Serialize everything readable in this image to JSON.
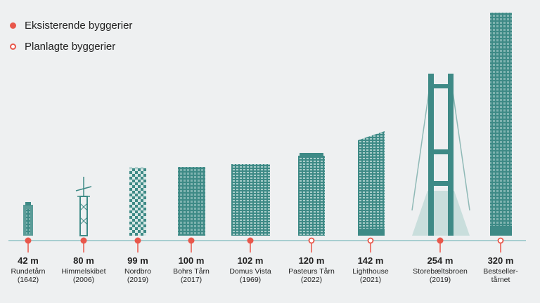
{
  "legend": {
    "existing": "Eksisterende byggerier",
    "planned": "Planlagte byggerier"
  },
  "colors": {
    "building": "#3e8a86",
    "marker": "#e8574b",
    "axis": "#8fc3c5",
    "bridge_fill": "#c9dedc"
  },
  "buildings": [
    {
      "height": "42 m",
      "name": "Rundetårn",
      "year": "(1642)",
      "status": "existing"
    },
    {
      "height": "80 m",
      "name": "Himmelskibet",
      "year": "(2006)",
      "status": "existing"
    },
    {
      "height": "99 m",
      "name": "Nordbro",
      "year": "(2019)",
      "status": "existing"
    },
    {
      "height": "100 m",
      "name": "Bohrs Tårn",
      "year": "(2017)",
      "status": "existing"
    },
    {
      "height": "102 m",
      "name": "Domus Vista",
      "year": "(1969)",
      "status": "existing"
    },
    {
      "height": "120 m",
      "name": "Pasteurs Tårn",
      "year": "(2022)",
      "status": "planned"
    },
    {
      "height": "142 m",
      "name": "Lighthouse",
      "year": "(2021)",
      "status": "planned"
    },
    {
      "height": "254 m",
      "name": "Storebæltsbroen",
      "year": "(2019)",
      "status": "existing"
    },
    {
      "height": "320 m",
      "name": "Bestseller-",
      "year": "tårnet",
      "status": "planned"
    }
  ]
}
